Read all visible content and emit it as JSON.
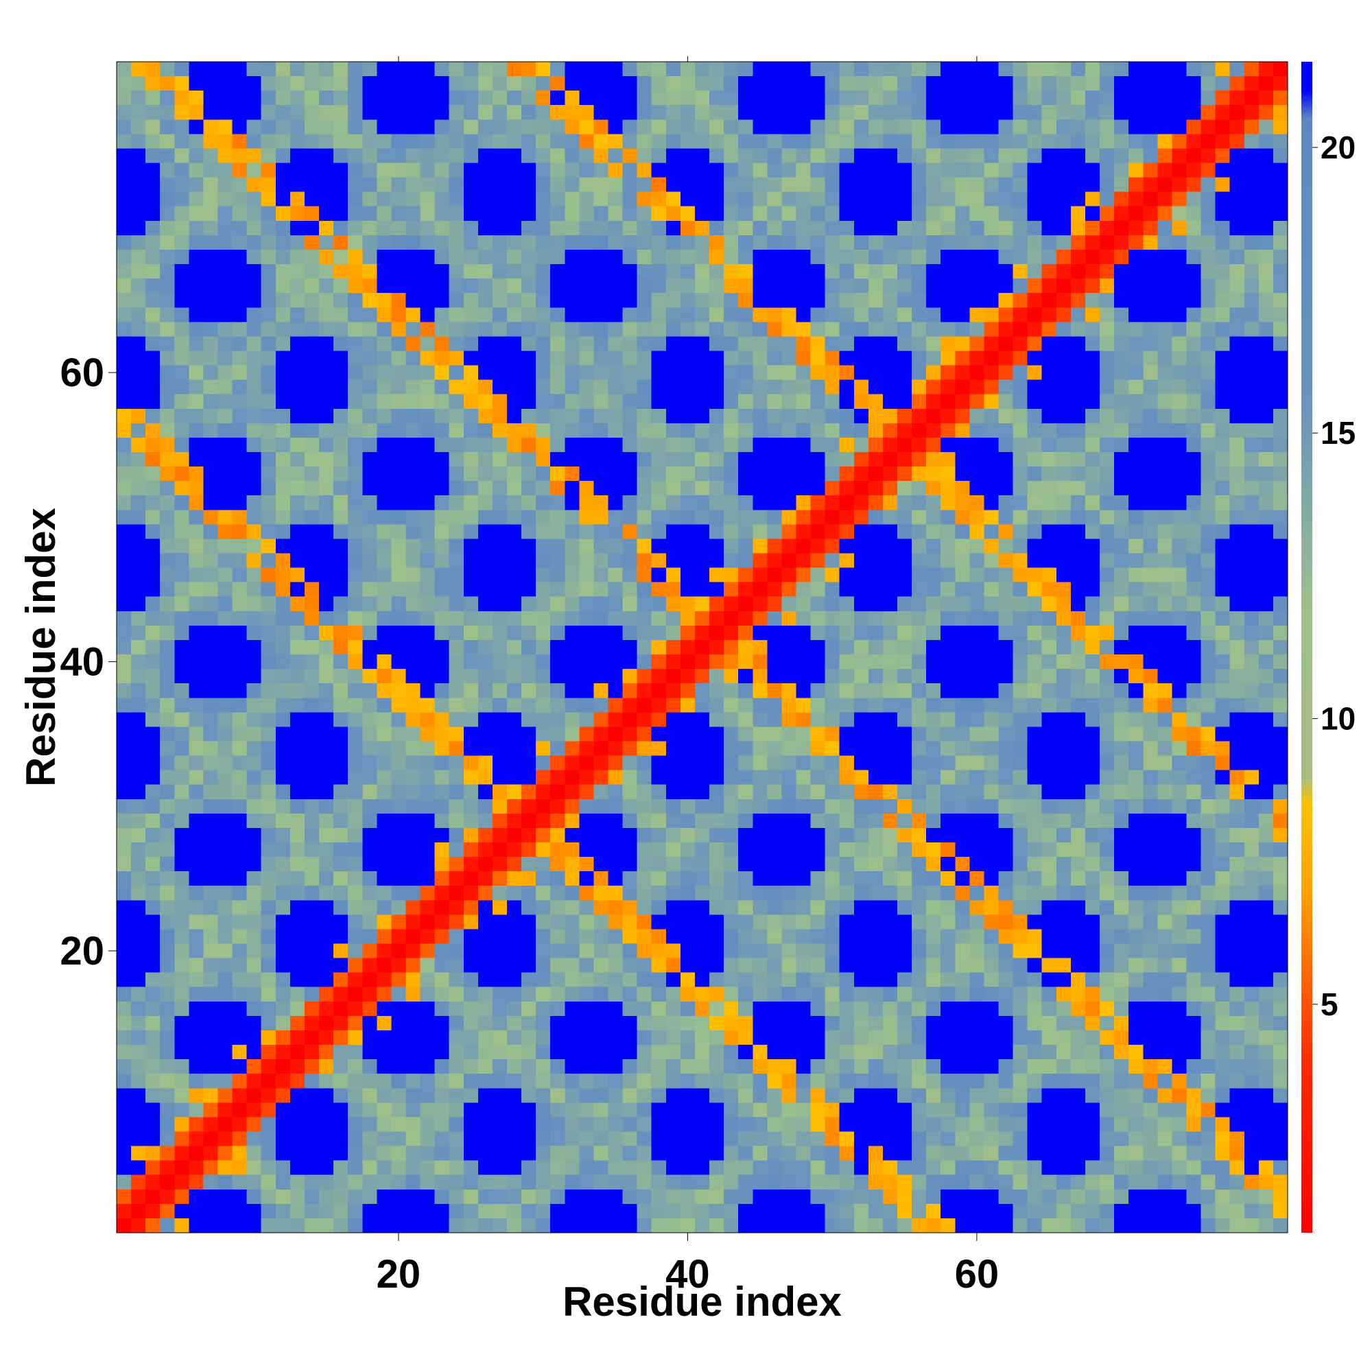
{
  "chart_data": {
    "type": "heatmap",
    "title": "",
    "xlabel": "Residue index",
    "ylabel": "Residue index",
    "xlim": [
      1,
      81
    ],
    "ylim": [
      1,
      81
    ],
    "x_ticks": [
      20,
      40,
      60
    ],
    "y_ticks": [
      20,
      40,
      60
    ],
    "colorbar": {
      "ticks": [
        5,
        10,
        15,
        20
      ],
      "range": [
        1,
        21.5
      ],
      "colormap": [
        {
          "value": 1,
          "color": "#ff0000"
        },
        {
          "value": 4,
          "color": "#ff2a00"
        },
        {
          "value": 5.5,
          "color": "#ff6600"
        },
        {
          "value": 7,
          "color": "#ffa200"
        },
        {
          "value": 8.5,
          "color": "#ffc000"
        },
        {
          "value": 9,
          "color": "#a7bd86"
        },
        {
          "value": 12,
          "color": "#9bbf8c"
        },
        {
          "value": 15.5,
          "color": "#6a93bd"
        },
        {
          "value": 20.5,
          "color": "#5b88c2"
        },
        {
          "value": 21,
          "color": "#0000ff"
        }
      ]
    },
    "n": 81,
    "pattern": "distance matrix: strong diagonal (residue i to i), anti-diagonal second contact band, periodic blue domains of large distance",
    "notes": ""
  }
}
